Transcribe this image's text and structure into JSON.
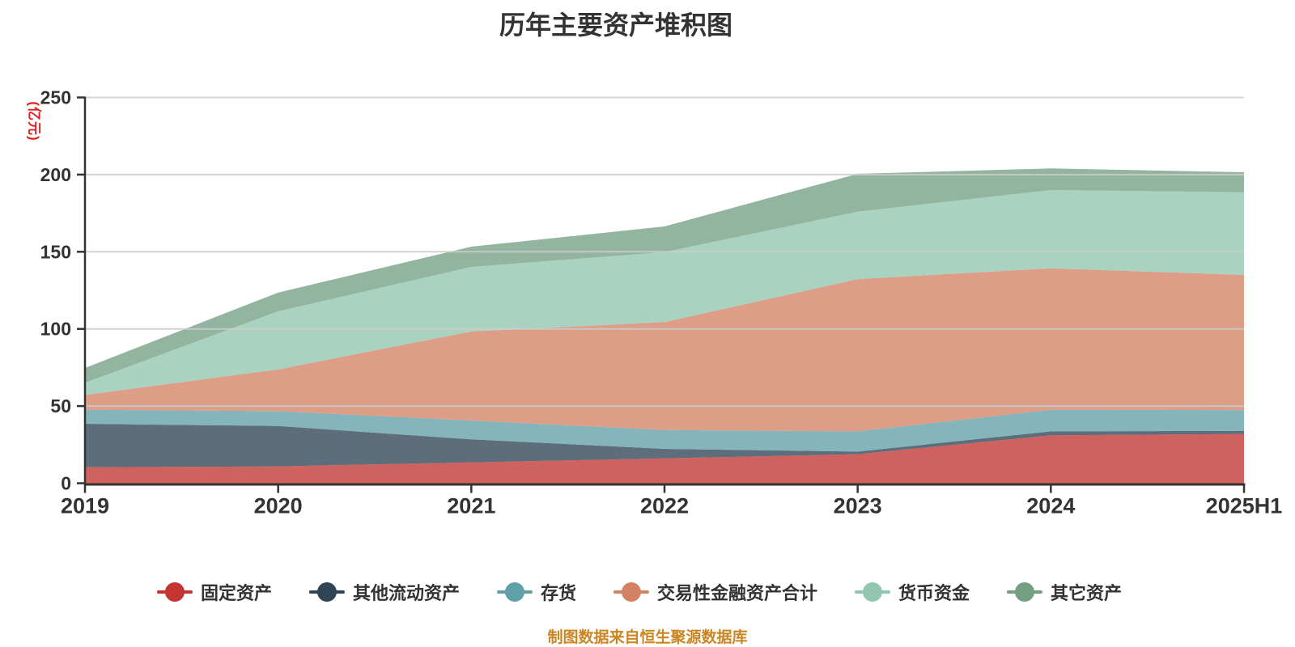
{
  "caption": "制图数据来自恒生聚源数据库",
  "colors": {
    "background": "#ffffff",
    "grid_line": "#cccccc",
    "axis_line": "#333333",
    "tick_text": "#333333",
    "title_text": "#333333",
    "y_axis_name_text": "#e02020",
    "caption_text": "#ca8622"
  },
  "chart_data": {
    "type": "area",
    "stacked": true,
    "title": "历年主要资产堆积图",
    "ylabel": "(亿元)",
    "xlabel": "",
    "ylim": [
      0,
      250
    ],
    "yticks": [
      0,
      50,
      100,
      150,
      200,
      250
    ],
    "grid": true,
    "legend_position": "bottom",
    "area_opacity": 0.78,
    "categories": [
      "2019",
      "2020",
      "2021",
      "2022",
      "2023",
      "2024",
      "2025H1"
    ],
    "series": [
      {
        "name": "固定资产",
        "color": "#c23531",
        "values": [
          10.4,
          10.9,
          13.5,
          16.1,
          18.8,
          31.0,
          31.9
        ]
      },
      {
        "name": "其他流动资产",
        "color": "#2f4554",
        "values": [
          28.1,
          26.2,
          14.9,
          6.2,
          1.7,
          2.6,
          2.0
        ]
      },
      {
        "name": "存货",
        "color": "#61a0a8",
        "values": [
          9.1,
          9.6,
          12.2,
          12.2,
          13.1,
          14.0,
          13.5
        ]
      },
      {
        "name": "交易性金融资产合计",
        "color": "#d48265",
        "values": [
          9.6,
          27.1,
          57.7,
          69.9,
          98.7,
          91.7,
          87.6
        ]
      },
      {
        "name": "货币资金",
        "color": "#91c7ae",
        "values": [
          7.9,
          37.6,
          41.9,
          45.4,
          43.7,
          50.7,
          53.5
        ]
      },
      {
        "name": "其它资产",
        "color": "#749f83",
        "values": [
          9.6,
          12.2,
          13.1,
          16.6,
          24.5,
          14.0,
          13.0
        ]
      }
    ],
    "stack_totals": [
      74.7,
      123.6,
      153.3,
      166.4,
      200.5,
      204.0,
      201.5
    ]
  }
}
